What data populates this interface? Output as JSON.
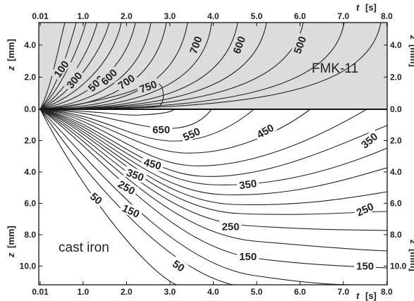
{
  "chart_data": {
    "type": "contour",
    "x_ticks": [
      "0.01",
      "1.0",
      "2.0",
      "3.0",
      "4.0",
      "5.0",
      "6.0",
      "7.0",
      "8.0"
    ],
    "x_tick_values": [
      0.01,
      1,
      2,
      3,
      4,
      5,
      6,
      7,
      8
    ],
    "xlabel_var": "t",
    "xlabel_unit": "[s]",
    "xlim": [
      0.01,
      8.0
    ],
    "ylabel_var": "z",
    "ylabel_unit_top": "[mm]",
    "ylabel_unit_bottom": "[mm]",
    "y_top_ticks": [
      "4.0",
      "2.0",
      "0.0"
    ],
    "y_top_values": [
      4.0,
      2.0,
      0.0
    ],
    "y_bottom_ticks": [
      "2.0",
      "4.0",
      "6.0",
      "8.0",
      "10.0"
    ],
    "y_bottom_values": [
      2.0,
      4.0,
      6.0,
      8.0,
      10.0
    ],
    "ylim_top_layer": [
      0,
      5.4
    ],
    "ylim_bottom_layer": [
      0,
      11.2
    ],
    "regions": [
      {
        "name": "FMK-11",
        "z_range": [
          0,
          5.4
        ]
      },
      {
        "name": "cast iron",
        "z_range": [
          0,
          11.2
        ]
      }
    ],
    "colors": {
      "top_layer_fill": "#dcdcdc",
      "line": "#222222"
    },
    "contour_labels_top_layer": [
      {
        "label": "100",
        "t": 0.5,
        "z": 2.5
      },
      {
        "label": "300",
        "t": 0.8,
        "z": 1.8
      },
      {
        "label": "500",
        "t": 1.3,
        "z": 1.6
      },
      {
        "label": "600",
        "t": 1.6,
        "z": 2.0
      },
      {
        "label": "700",
        "t": 2.0,
        "z": 1.7
      },
      {
        "label": "750",
        "t": 2.5,
        "z": 1.4
      },
      {
        "label": "700",
        "t": 3.6,
        "z": 4.0
      },
      {
        "label": "600",
        "t": 4.6,
        "z": 4.0
      },
      {
        "label": "500",
        "t": 6.0,
        "z": 4.0
      }
    ],
    "contour_labels_bottom_layer": [
      {
        "label": "650",
        "t": 2.8,
        "z": 1.3
      },
      {
        "label": "550",
        "t": 3.5,
        "z": 1.6
      },
      {
        "label": "450",
        "t": 5.2,
        "z": 1.4
      },
      {
        "label": "350",
        "t": 7.6,
        "z": 2.0
      },
      {
        "label": "450",
        "t": 2.6,
        "z": 3.5
      },
      {
        "label": "350",
        "t": 2.2,
        "z": 4.2
      },
      {
        "label": "350",
        "t": 4.8,
        "z": 4.8
      },
      {
        "label": "250",
        "t": 2.0,
        "z": 5.0
      },
      {
        "label": "150",
        "t": 2.1,
        "z": 6.5
      },
      {
        "label": "50",
        "t": 1.3,
        "z": 5.7
      },
      {
        "label": "250",
        "t": 4.4,
        "z": 7.5
      },
      {
        "label": "250",
        "t": 7.5,
        "z": 6.4
      },
      {
        "label": "150",
        "t": 4.8,
        "z": 9.4
      },
      {
        "label": "150",
        "t": 7.5,
        "z": 10.0
      },
      {
        "label": "50",
        "t": 3.2,
        "z": 10.0
      }
    ]
  }
}
